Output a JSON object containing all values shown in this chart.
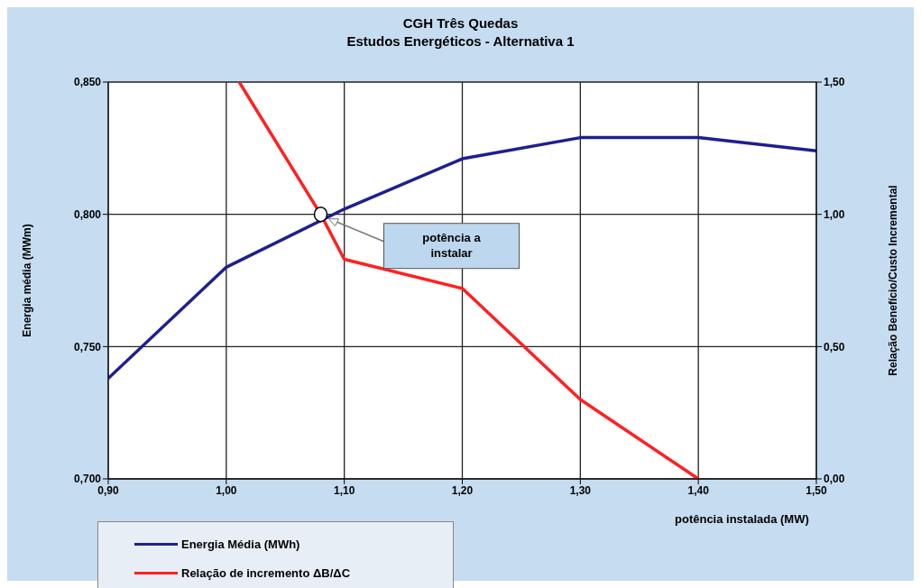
{
  "chart_data": {
    "type": "line",
    "title": "CGH Três Quedas",
    "subtitle": "Estudos Energéticos - Alternativa 1",
    "xlabel": "potência instalada (MW)",
    "ylabel": "Energia média (MWm)",
    "y2label": "Relação Benefício/Custo Incremental",
    "xlim": [
      0.9,
      1.5
    ],
    "xticks": [
      {
        "value": 0.9,
        "label": "0,90"
      },
      {
        "value": 1.0,
        "label": "1,00"
      },
      {
        "value": 1.1,
        "label": "1,10"
      },
      {
        "value": 1.2,
        "label": "1,20"
      },
      {
        "value": 1.3,
        "label": "1,30"
      },
      {
        "value": 1.4,
        "label": "1,40"
      },
      {
        "value": 1.5,
        "label": "1,50"
      }
    ],
    "ylim": [
      0.7,
      0.85
    ],
    "yticks": [
      {
        "value": 0.7,
        "label": "0,700"
      },
      {
        "value": 0.75,
        "label": "0,750"
      },
      {
        "value": 0.8,
        "label": "0,800"
      },
      {
        "value": 0.85,
        "label": "0,850"
      }
    ],
    "y2lim": [
      0,
      1.5
    ],
    "y2ticks": [
      {
        "value": 0,
        "label": "0,00"
      },
      {
        "value": 0.5,
        "label": "0,50"
      },
      {
        "value": 1.0,
        "label": "1,00"
      },
      {
        "value": 1.5,
        "label": "1,50"
      }
    ],
    "grid": true,
    "legend": "bottom left",
    "marker": "none",
    "line_style": "solid",
    "series": [
      {
        "name": "Energia Média (MWh)",
        "color": "#1f1f8f",
        "x": [
          0.9,
          1.0,
          1.1,
          1.2,
          1.3,
          1.4,
          1.5
        ],
        "values": [
          0.738,
          0.78,
          0.802,
          0.821,
          0.829,
          0.829,
          0.824
        ]
      },
      {
        "name": "Relação de incremento ΔB/ΔC",
        "color": "#ff2020",
        "axis": "y2",
        "x": [
          1.011,
          1.08,
          1.1,
          1.2,
          1.3,
          1.4
        ],
        "values": [
          1.5,
          1.0,
          0.83,
          0.72,
          0.3,
          0.0
        ]
      }
    ],
    "annotations": [
      "potência a instalar"
    ]
  }
}
